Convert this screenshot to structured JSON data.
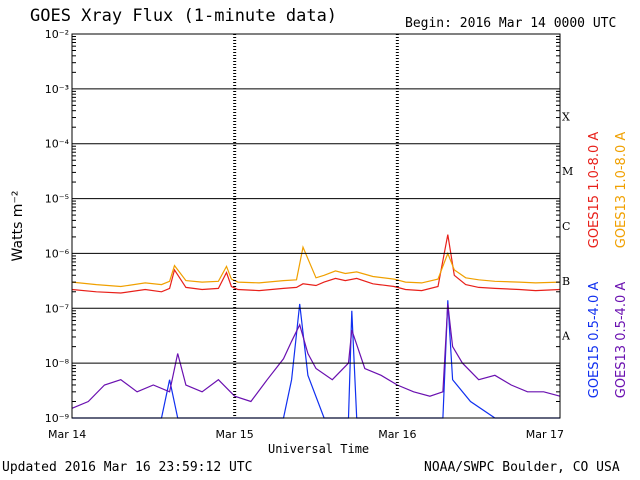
{
  "header": {
    "title": "GOES Xray Flux (1-minute data)",
    "begin": "Begin:  2016 Mar 14 0000 UTC"
  },
  "footer": {
    "updated": "Updated 2016 Mar 16 23:59:12 UTC",
    "credit": "NOAA/SWPC Boulder, CO USA"
  },
  "chart_data": {
    "type": "line",
    "title": "GOES Xray Flux (1-minute data)",
    "xlabel": "Universal Time",
    "ylabel": "Watts m⁻²",
    "x_ticks": [
      "Mar 14",
      "Mar 15",
      "Mar 16",
      "Mar 17"
    ],
    "x_range_days": [
      0,
      3
    ],
    "y_scale": "log",
    "ylim": [
      1e-09,
      0.01
    ],
    "y_ticks": [
      {
        "value": 1e-09,
        "label": "10⁻⁹"
      },
      {
        "value": 1e-08,
        "label": "10⁻⁸"
      },
      {
        "value": 1e-07,
        "label": "10⁻⁷"
      },
      {
        "value": 1e-06,
        "label": "10⁻⁶"
      },
      {
        "value": 1e-05,
        "label": "10⁻⁵"
      },
      {
        "value": 0.0001,
        "label": "10⁻⁴"
      },
      {
        "value": 0.001,
        "label": "10⁻³"
      },
      {
        "value": 0.01,
        "label": "10⁻²"
      }
    ],
    "flare_classes": [
      {
        "label": "A",
        "value": 3.16e-08
      },
      {
        "label": "B",
        "value": 3.16e-07
      },
      {
        "label": "C",
        "value": 3.16e-06
      },
      {
        "label": "M",
        "value": 3.16e-05
      },
      {
        "label": "X",
        "value": 0.000316
      }
    ],
    "grid": "horizontal at each decade, dashed vertical at each day",
    "legend_placement": "right, vertical",
    "series": [
      {
        "name": "GOES15 1.0-8.0 A",
        "color": "#e8201a",
        "x": [
          0.0,
          0.15,
          0.3,
          0.45,
          0.55,
          0.6,
          0.63,
          0.7,
          0.8,
          0.9,
          0.95,
          0.98,
          1.02,
          1.15,
          1.3,
          1.38,
          1.42,
          1.5,
          1.55,
          1.62,
          1.68,
          1.75,
          1.85,
          1.98,
          2.05,
          2.15,
          2.25,
          2.31,
          2.35,
          2.42,
          2.5,
          2.6,
          2.75,
          2.85,
          3.0
        ],
        "values": [
          2.2e-07,
          2e-07,
          1.9e-07,
          2.2e-07,
          2e-07,
          2.3e-07,
          5e-07,
          2.4e-07,
          2.2e-07,
          2.3e-07,
          4.5e-07,
          2.5e-07,
          2.2e-07,
          2.1e-07,
          2.3e-07,
          2.4e-07,
          2.8e-07,
          2.6e-07,
          3e-07,
          3.5e-07,
          3.2e-07,
          3.5e-07,
          2.8e-07,
          2.5e-07,
          2.2e-07,
          2.1e-07,
          2.5e-07,
          2.2e-06,
          4e-07,
          2.7e-07,
          2.4e-07,
          2.3e-07,
          2.2e-07,
          2.1e-07,
          2.2e-07
        ]
      },
      {
        "name": "GOES13 1.0-8.0 A",
        "color": "#f0a000",
        "x": [
          0.0,
          0.15,
          0.3,
          0.45,
          0.55,
          0.6,
          0.63,
          0.7,
          0.8,
          0.9,
          0.95,
          0.98,
          1.02,
          1.15,
          1.3,
          1.38,
          1.42,
          1.5,
          1.55,
          1.62,
          1.68,
          1.75,
          1.85,
          1.98,
          2.05,
          2.15,
          2.25,
          2.31,
          2.35,
          2.42,
          2.5,
          2.6,
          2.75,
          2.85,
          3.0
        ],
        "values": [
          3e-07,
          2.7e-07,
          2.5e-07,
          2.9e-07,
          2.7e-07,
          3.1e-07,
          6e-07,
          3.2e-07,
          3e-07,
          3.1e-07,
          5.8e-07,
          3.4e-07,
          3e-07,
          2.9e-07,
          3.2e-07,
          3.3e-07,
          1.3e-06,
          3.6e-07,
          4e-07,
          4.8e-07,
          4.3e-07,
          4.6e-07,
          3.8e-07,
          3.4e-07,
          3e-07,
          2.9e-07,
          3.4e-07,
          1e-06,
          5e-07,
          3.6e-07,
          3.3e-07,
          3.1e-07,
          3e-07,
          2.9e-07,
          3e-07
        ]
      },
      {
        "name": "GOES15 0.5-4.0 A",
        "color": "#1030f0",
        "x": [
          0.0,
          0.3,
          0.55,
          0.6,
          0.65,
          0.9,
          1.1,
          1.3,
          1.35,
          1.4,
          1.45,
          1.55,
          1.7,
          1.72,
          1.75,
          1.9,
          2.1,
          2.28,
          2.31,
          2.34,
          2.45,
          2.6,
          2.8,
          3.0
        ],
        "values": [
          1e-09,
          1e-09,
          1e-09,
          5e-09,
          1e-09,
          1e-09,
          1e-09,
          1e-09,
          5e-09,
          1.2e-07,
          6e-09,
          1e-09,
          1e-09,
          9e-08,
          1e-09,
          1e-09,
          1e-09,
          1e-09,
          1.4e-07,
          5e-09,
          2e-09,
          1e-09,
          1e-09,
          1e-09
        ]
      },
      {
        "name": "GOES13 0.5-4.0 A",
        "color": "#6a10b0",
        "x": [
          0.0,
          0.1,
          0.2,
          0.3,
          0.4,
          0.5,
          0.6,
          0.65,
          0.7,
          0.8,
          0.9,
          1.0,
          1.1,
          1.2,
          1.3,
          1.35,
          1.4,
          1.45,
          1.5,
          1.6,
          1.7,
          1.72,
          1.8,
          1.9,
          2.0,
          2.1,
          2.2,
          2.28,
          2.31,
          2.34,
          2.4,
          2.5,
          2.6,
          2.7,
          2.8,
          2.9,
          3.0
        ],
        "values": [
          1.5e-09,
          2e-09,
          4e-09,
          5e-09,
          3e-09,
          4e-09,
          3e-09,
          1.5e-08,
          4e-09,
          3e-09,
          5e-09,
          2.5e-09,
          2e-09,
          5e-09,
          1.2e-08,
          2.5e-08,
          5e-08,
          1.5e-08,
          8e-09,
          5e-09,
          1e-08,
          4e-08,
          8e-09,
          6e-09,
          4e-09,
          3e-09,
          2.5e-09,
          3e-09,
          1.2e-07,
          2e-08,
          1e-08,
          5e-09,
          6e-09,
          4e-09,
          3e-09,
          3e-09,
          2.5e-09
        ]
      }
    ]
  }
}
